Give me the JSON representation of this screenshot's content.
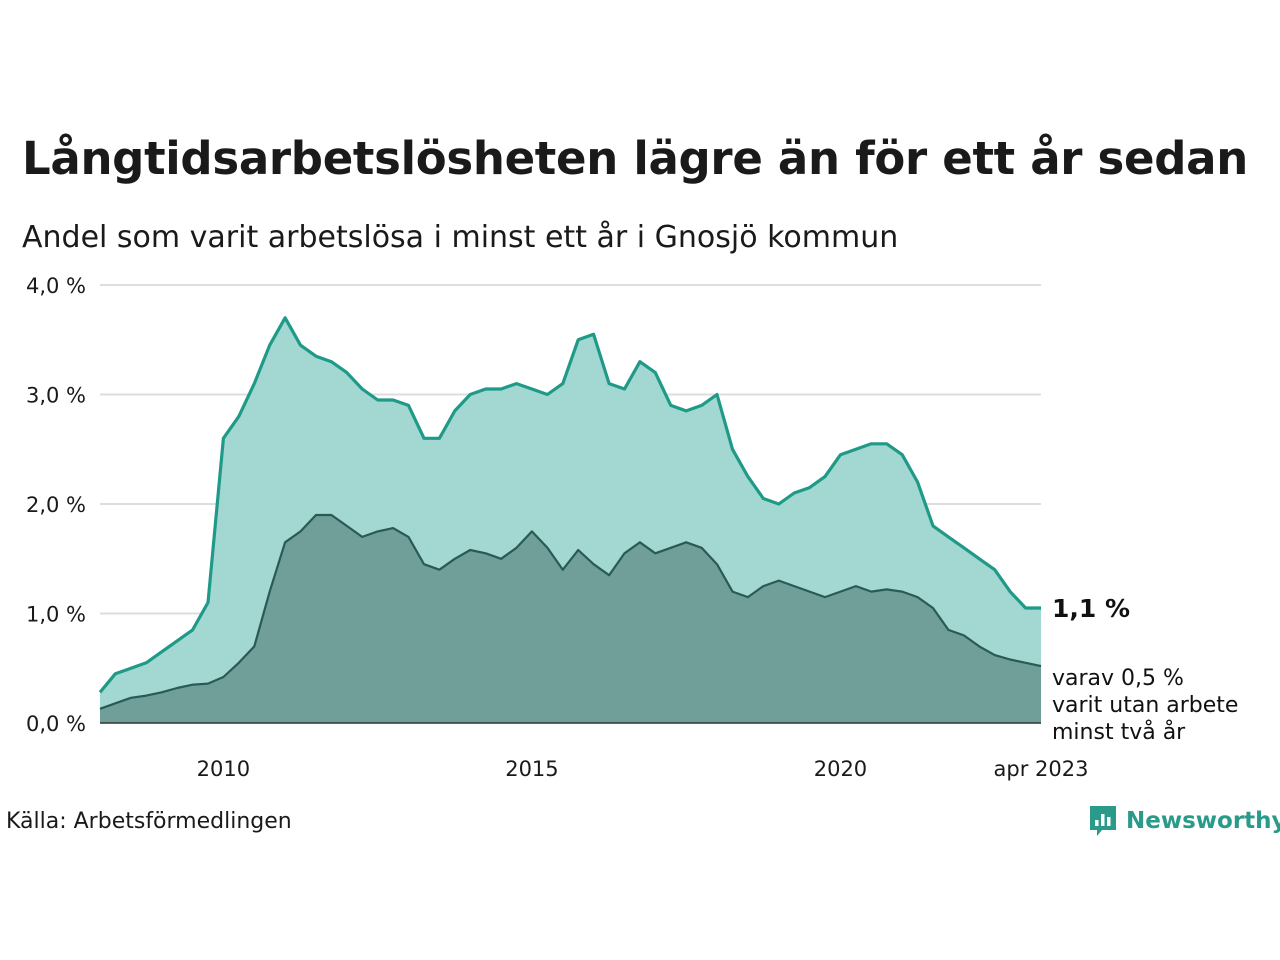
{
  "title": "Långtidsarbetslösheten lägre än för ett år sedan",
  "subtitle": "Andel som varit arbetslösa i minst ett år i Gnosjö kommun",
  "source": "Källa: Arbetsförmedlingen",
  "brand": "Newsworthy",
  "colors": {
    "series1_line": "#1f9a88",
    "series1_fill": "#a3d7d1",
    "series2_line": "#2a5a54",
    "series2_fill": "#6f9f98",
    "gridline": "#dddddd"
  },
  "chart_data": {
    "type": "area",
    "x_unit": "month",
    "x_range": [
      "2008-01",
      "2023-04"
    ],
    "ylim": [
      0,
      4
    ],
    "y_ticks": [
      0,
      1,
      2,
      3,
      4
    ],
    "y_tick_labels": [
      "0,0 %",
      "1,0 %",
      "2,0 %",
      "3,0 %",
      "4,0 %"
    ],
    "x_tick_labels": [
      "2010",
      "2015",
      "2020",
      "apr 2023"
    ],
    "x_tick_values": [
      "2010-01",
      "2015-01",
      "2020-01",
      "2023-04"
    ],
    "grid": true,
    "annotation_main": "1,1 %",
    "annotation_sub": [
      "varav 0,5 %",
      "varit utan arbete",
      "minst två år"
    ],
    "series": [
      {
        "x_step_years": 0.25,
        "values": [
          0.28,
          0.45,
          0.5,
          0.55,
          0.65,
          0.75,
          0.85,
          1.1,
          2.6,
          2.8,
          3.1,
          3.45,
          3.7,
          3.45,
          3.35,
          3.3,
          3.2,
          3.05,
          2.95,
          2.95,
          2.9,
          2.6,
          2.6,
          2.85,
          3.0,
          3.05,
          3.05,
          3.1,
          3.05,
          3.0,
          3.1,
          3.5,
          3.55,
          3.1,
          3.05,
          3.3,
          3.2,
          2.9,
          2.85,
          2.9,
          3.0,
          2.5,
          2.25,
          2.05,
          2.0,
          2.1,
          2.15,
          2.25,
          2.45,
          2.5,
          2.55,
          2.55,
          2.45,
          2.2,
          1.8,
          1.7,
          1.6,
          1.5,
          1.4,
          1.2,
          1.05,
          1.05
        ]
      },
      {
        "x_step_years": 0.25,
        "values": [
          0.13,
          0.18,
          0.23,
          0.25,
          0.28,
          0.32,
          0.35,
          0.36,
          0.42,
          0.55,
          0.7,
          1.2,
          1.65,
          1.75,
          1.9,
          1.9,
          1.8,
          1.7,
          1.75,
          1.78,
          1.7,
          1.45,
          1.4,
          1.5,
          1.58,
          1.55,
          1.5,
          1.6,
          1.75,
          1.6,
          1.4,
          1.58,
          1.45,
          1.35,
          1.55,
          1.65,
          1.55,
          1.6,
          1.65,
          1.6,
          1.45,
          1.2,
          1.15,
          1.25,
          1.3,
          1.25,
          1.2,
          1.15,
          1.2,
          1.25,
          1.2,
          1.22,
          1.2,
          1.15,
          1.05,
          0.85,
          0.8,
          0.7,
          0.62,
          0.58,
          0.55,
          0.52
        ]
      }
    ]
  }
}
